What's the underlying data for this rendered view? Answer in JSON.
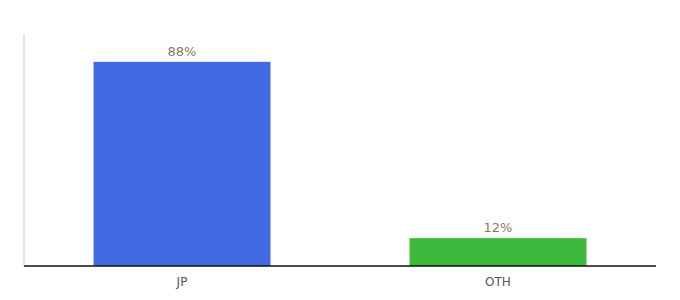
{
  "chart_data": {
    "type": "bar",
    "categories": [
      "JP",
      "OTH"
    ],
    "values": [
      88,
      12
    ],
    "value_labels": [
      "88%",
      "12%"
    ],
    "colors": [
      "#4169e1",
      "#3cb83c"
    ],
    "ylim": [
      0,
      100
    ],
    "yticks": [],
    "data_labels": true,
    "tick_labels": "x",
    "grid": false
  }
}
